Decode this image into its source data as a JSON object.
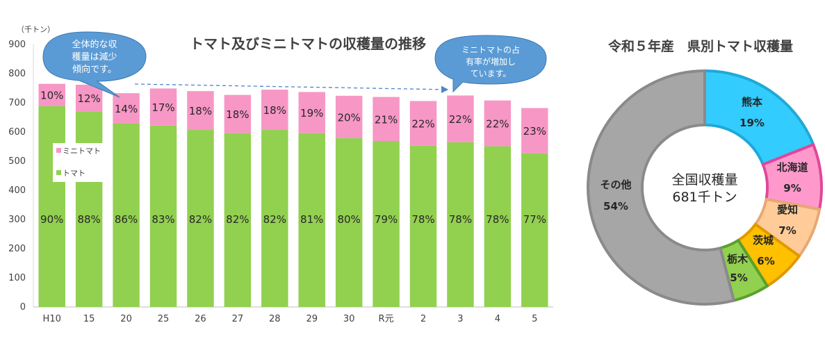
{
  "chart_data": [
    {
      "type": "bar",
      "stacked": true,
      "title": "トマト及びミニトマトの収穫量の推移",
      "ylabel": "（千トン）",
      "ylim": [
        0,
        900
      ],
      "yticks": [
        0,
        100,
        200,
        300,
        400,
        500,
        600,
        700,
        800,
        900
      ],
      "grid": false,
      "legend": "left",
      "categories": [
        "H10",
        "15",
        "20",
        "25",
        "26",
        "27",
        "28",
        "29",
        "30",
        "R元",
        "2",
        "3",
        "4",
        "5"
      ],
      "series": [
        {
          "name": "トマト",
          "color": "#92d050",
          "values": [
            689,
            671,
            630,
            622,
            607,
            596,
            607,
            596,
            579,
            569,
            553,
            565,
            551,
            527
          ],
          "labels": [
            "90%",
            "88%",
            "86%",
            "83%",
            "82%",
            "82%",
            "82%",
            "81%",
            "80%",
            "79%",
            "78%",
            "78%",
            "78%",
            "77%"
          ]
        },
        {
          "name": "ミニトマト",
          "color": "#f797c6",
          "values": [
            76,
            91,
            103,
            127,
            133,
            131,
            138,
            141,
            145,
            151,
            153,
            160,
            157,
            155
          ],
          "labels": [
            "10%",
            "12%",
            "14%",
            "17%",
            "18%",
            "18%",
            "18%",
            "19%",
            "20%",
            "21%",
            "22%",
            "22%",
            "22%",
            "23%"
          ]
        }
      ],
      "annotations": [
        {
          "lines": [
            "全体的な収",
            "穫量は減少",
            "傾向です。"
          ]
        },
        {
          "lines": [
            "ミニトマトの占",
            "有率が増加し",
            "ています。"
          ]
        }
      ]
    },
    {
      "type": "pie",
      "donut": true,
      "title": "令和５年産　県別トマト収穫量",
      "center_lines": [
        "全国収穫量",
        "681千トン"
      ],
      "slices": [
        {
          "name": "熊本",
          "value": 19,
          "label": "19%",
          "color": "#33ccff"
        },
        {
          "name": "北海道",
          "value": 9,
          "label": "9%",
          "color": "#ff99cc"
        },
        {
          "name": "愛知",
          "value": 7,
          "label": "7%",
          "color": "#ffcc99"
        },
        {
          "name": "茨城",
          "value": 6,
          "label": "6%",
          "color": "#ffc000"
        },
        {
          "name": "栃木",
          "value": 5,
          "label": "5%",
          "color": "#92d050"
        },
        {
          "name": "その他",
          "value": 54,
          "label": "54%",
          "color": "#a6a6a6"
        }
      ]
    }
  ]
}
